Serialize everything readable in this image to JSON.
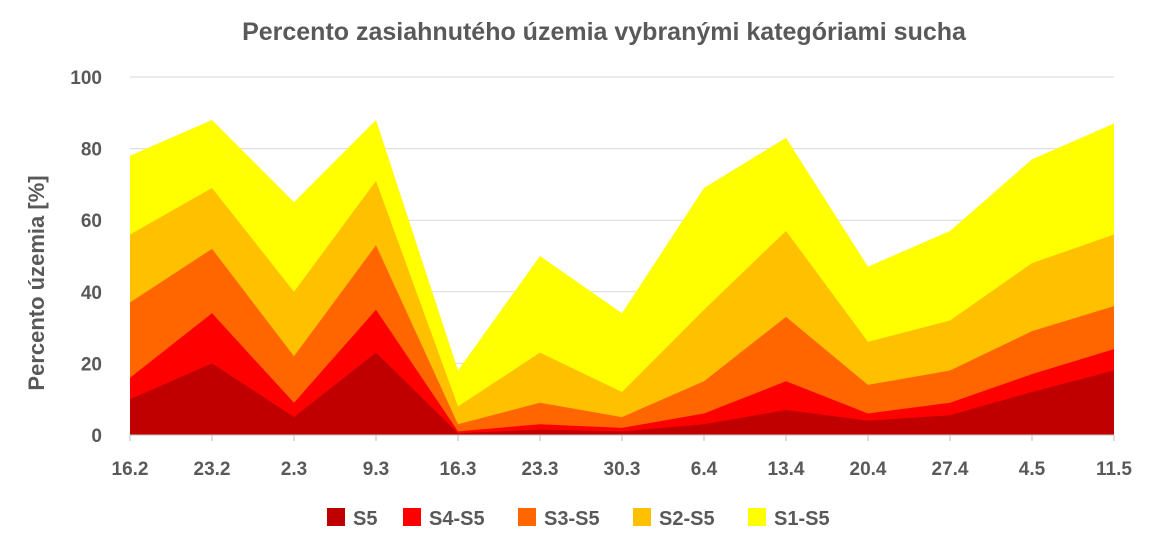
{
  "chart_data": {
    "type": "area",
    "title": "Percento zasiahnutého územia vybranými kategóriami sucha",
    "xlabel": "",
    "ylabel": "Percento územia  [%]",
    "ylim": [
      0,
      100
    ],
    "yticks": [
      0,
      20,
      40,
      60,
      80,
      100
    ],
    "grid": true,
    "legend_position": "bottom",
    "categories": [
      "16.2",
      "23.2",
      "2.3",
      "9.3",
      "16.3",
      "23.3",
      "30.3",
      "6.4",
      "13.4",
      "20.4",
      "27.4",
      "4.5",
      "11.5"
    ],
    "series": [
      {
        "name": "S1-S5",
        "color": "#FFFF00",
        "values": [
          78,
          88,
          65,
          88,
          18,
          50,
          34,
          69,
          83,
          47,
          57,
          77,
          87
        ]
      },
      {
        "name": "S2-S5",
        "color": "#FFC000",
        "values": [
          56,
          69,
          40,
          71,
          8,
          23,
          12,
          35,
          57,
          26,
          32,
          48,
          56
        ]
      },
      {
        "name": "S3-S5",
        "color": "#FF6600",
        "values": [
          37,
          52,
          22,
          53,
          3,
          9,
          5,
          15,
          33,
          14,
          18,
          29,
          36
        ]
      },
      {
        "name": "S4-S5",
        "color": "#FF0000",
        "values": [
          16,
          34,
          9,
          35,
          1,
          3,
          2,
          6,
          15,
          6,
          9,
          17,
          24
        ]
      },
      {
        "name": "S5",
        "color": "#C00000",
        "values": [
          10,
          20,
          5,
          23,
          0.5,
          1.5,
          1,
          3,
          7,
          4,
          5.5,
          12,
          18
        ]
      }
    ],
    "legend_order": [
      "S5",
      "S4-S5",
      "S3-S5",
      "S2-S5",
      "S1-S5"
    ]
  }
}
